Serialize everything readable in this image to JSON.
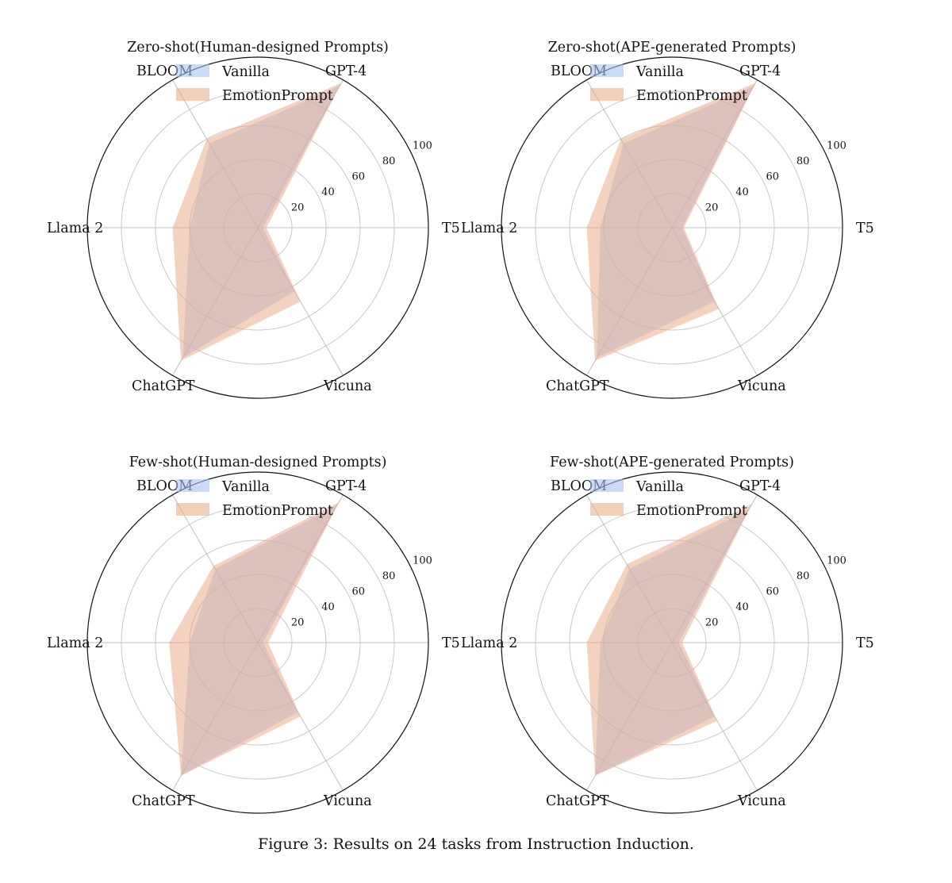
{
  "figure": {
    "caption": "Figure 3: Results on 24 tasks from Instruction Induction."
  },
  "legend": {
    "vanilla": "Vanilla",
    "emotion": "EmotionPrompt",
    "colors": {
      "vanilla": "#a9c1f0",
      "emotion": "#e8a880",
      "overlap": "#c49b96"
    }
  },
  "chart_data": [
    {
      "type": "radar",
      "title": "Zero-shot(Human-designed Prompts)",
      "categories": [
        "T5",
        "GPT-4",
        "BLOOM",
        "Llama 2",
        "ChatGPT",
        "Vicuna"
      ],
      "rlim": [
        0,
        100
      ],
      "ticks": [
        20,
        40,
        60,
        80,
        100
      ],
      "grid": true,
      "legend_position": "top-left",
      "series": [
        {
          "name": "Vanilla",
          "values": [
            3,
            96,
            57,
            40,
            88,
            43
          ]
        },
        {
          "name": "EmotionPrompt",
          "values": [
            5,
            98,
            60,
            50,
            90,
            50
          ]
        }
      ]
    },
    {
      "type": "radar",
      "title": "Zero-shot(APE-generated Prompts)",
      "categories": [
        "T5",
        "GPT-4",
        "BLOOM",
        "Llama 2",
        "ChatGPT",
        "Vicuna"
      ],
      "rlim": [
        0,
        100
      ],
      "ticks": [
        20,
        40,
        60,
        80,
        100
      ],
      "grid": true,
      "legend_position": "top-left",
      "series": [
        {
          "name": "Vanilla",
          "values": [
            6,
            96,
            57,
            42,
            88,
            50
          ]
        },
        {
          "name": "EmotionPrompt",
          "values": [
            7,
            98,
            60,
            50,
            90,
            55
          ]
        }
      ]
    },
    {
      "type": "radar",
      "title": "Few-shot(Human-designed Prompts)",
      "categories": [
        "T5",
        "GPT-4",
        "BLOOM",
        "Llama 2",
        "ChatGPT",
        "Vicuna"
      ],
      "rlim": [
        0,
        100
      ],
      "ticks": [
        20,
        40,
        60,
        80,
        100
      ],
      "grid": true,
      "legend_position": "top-left",
      "series": [
        {
          "name": "Vanilla",
          "values": [
            3,
            93,
            50,
            40,
            90,
            47
          ]
        },
        {
          "name": "EmotionPrompt",
          "values": [
            6,
            95,
            52,
            52,
            90,
            50
          ]
        }
      ]
    },
    {
      "type": "radar",
      "title": "Few-shot(APE-generated Prompts)",
      "categories": [
        "T5",
        "GPT-4",
        "BLOOM",
        "Llama 2",
        "ChatGPT",
        "Vicuna"
      ],
      "rlim": [
        0,
        100
      ],
      "ticks": [
        20,
        40,
        60,
        80,
        100
      ],
      "grid": true,
      "legend_position": "top-left",
      "series": [
        {
          "name": "Vanilla",
          "values": [
            4,
            90,
            50,
            42,
            90,
            50
          ]
        },
        {
          "name": "EmotionPrompt",
          "values": [
            6,
            94,
            53,
            50,
            90,
            53
          ]
        }
      ]
    }
  ]
}
